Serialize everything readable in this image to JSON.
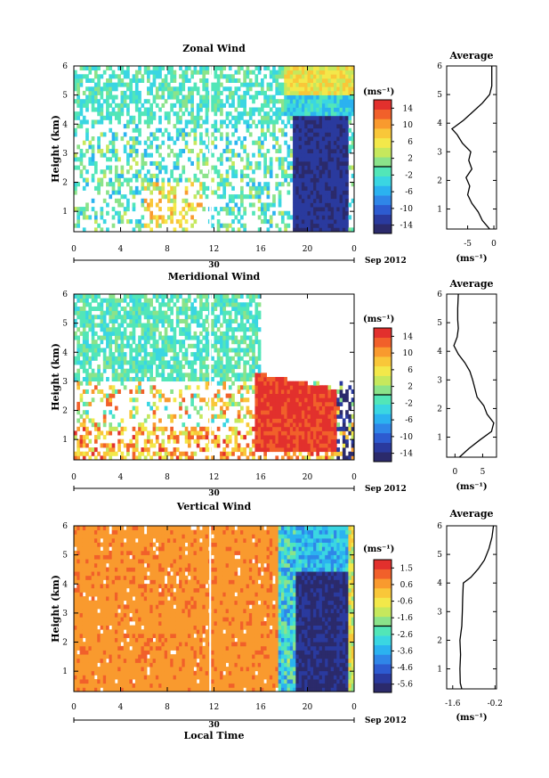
{
  "colors": {
    "scale": [
      "#2b2a6b",
      "#2a3a9e",
      "#2d5bd0",
      "#2f86e8",
      "#2bb2f0",
      "#3ad6e2",
      "#52e6b8",
      "#8be38a",
      "#c6e85d",
      "#f3e84a",
      "#f9c739",
      "#f99a2e",
      "#f1602a",
      "#e2302d"
    ]
  },
  "chart_data": [
    {
      "type": "heatmap",
      "title": "Zonal Wind",
      "ylabel": "Height (km)",
      "xlabel": "",
      "x_ticks": [
        "0",
        "4",
        "8",
        "12",
        "16",
        "20",
        "0"
      ],
      "y_ticks": [
        "1",
        "2",
        "3",
        "4",
        "5",
        "6"
      ],
      "date_label": "30",
      "month_label": "Sep 2012",
      "xlim": [
        0,
        24
      ],
      "ylim": [
        0.3,
        6
      ],
      "colorbar": {
        "unit": "(ms⁻¹)",
        "ticks": [
          "14",
          "10",
          "6",
          "2",
          "-2",
          "-6",
          "-10",
          "-14"
        ],
        "range": [
          -14,
          14
        ]
      },
      "average": {
        "title": "Average",
        "xlabel": "(ms⁻¹)",
        "x_ticks": [
          "-5",
          "0"
        ],
        "xlim": [
          -9,
          0.5
        ],
        "y_ticks": [
          "1",
          "2",
          "3",
          "4",
          "5",
          "6"
        ],
        "ylim": [
          0.3,
          6
        ],
        "profile": [
          [
            0.3,
            -0.8
          ],
          [
            0.6,
            -2.2
          ],
          [
            0.9,
            -3.0
          ],
          [
            1.2,
            -4.2
          ],
          [
            1.5,
            -5.0
          ],
          [
            1.8,
            -4.6
          ],
          [
            2.1,
            -5.3
          ],
          [
            2.4,
            -4.2
          ],
          [
            2.7,
            -4.8
          ],
          [
            3.0,
            -4.4
          ],
          [
            3.3,
            -6.0
          ],
          [
            3.6,
            -7.0
          ],
          [
            3.8,
            -8.0
          ],
          [
            4.1,
            -5.8
          ],
          [
            4.4,
            -4.0
          ],
          [
            4.7,
            -2.2
          ],
          [
            5.0,
            -0.8
          ],
          [
            5.3,
            -0.4
          ],
          [
            5.6,
            -0.4
          ],
          [
            6.0,
            -0.4
          ]
        ]
      }
    },
    {
      "type": "heatmap",
      "title": "Meridional Wind",
      "ylabel": "Height (km)",
      "xlabel": "",
      "x_ticks": [
        "0",
        "4",
        "8",
        "12",
        "16",
        "20",
        "0"
      ],
      "y_ticks": [
        "1",
        "2",
        "3",
        "4",
        "5",
        "6"
      ],
      "date_label": "30",
      "month_label": "Sep 2012",
      "xlim": [
        0,
        24
      ],
      "ylim": [
        0.3,
        6
      ],
      "colorbar": {
        "unit": "(ms⁻¹)",
        "ticks": [
          "14",
          "10",
          "6",
          "2",
          "-2",
          "-6",
          "-10",
          "-14"
        ],
        "range": [
          -14,
          14
        ]
      },
      "average": {
        "title": "Average",
        "xlabel": "(ms⁻¹)",
        "x_ticks": [
          "0",
          "5"
        ],
        "xlim": [
          -1.5,
          7.5
        ],
        "y_ticks": [
          "1",
          "2",
          "3",
          "4",
          "5",
          "6"
        ],
        "ylim": [
          0.3,
          6
        ],
        "profile": [
          [
            0.3,
            0.8
          ],
          [
            0.6,
            2.5
          ],
          [
            0.9,
            4.5
          ],
          [
            1.2,
            6.6
          ],
          [
            1.5,
            7.0
          ],
          [
            1.8,
            5.8
          ],
          [
            2.1,
            5.2
          ],
          [
            2.4,
            4.0
          ],
          [
            2.7,
            3.6
          ],
          [
            3.0,
            3.2
          ],
          [
            3.3,
            2.7
          ],
          [
            3.6,
            1.8
          ],
          [
            3.9,
            0.6
          ],
          [
            4.2,
            -0.2
          ],
          [
            4.5,
            0.4
          ],
          [
            4.8,
            0.6
          ],
          [
            5.1,
            0.5
          ],
          [
            5.5,
            0.5
          ],
          [
            6.0,
            0.6
          ]
        ]
      }
    },
    {
      "type": "heatmap",
      "title": "Vertical Wind",
      "ylabel": "Height (km)",
      "xlabel": "Local Time",
      "x_ticks": [
        "0",
        "4",
        "8",
        "12",
        "16",
        "20",
        "0"
      ],
      "y_ticks": [
        "1",
        "2",
        "3",
        "4",
        "5",
        "6"
      ],
      "date_label": "30",
      "month_label": "Sep 2012",
      "xlim": [
        0,
        24
      ],
      "ylim": [
        0.3,
        6
      ],
      "colorbar": {
        "unit": "(ms⁻¹)",
        "ticks": [
          "1.5",
          "0.6",
          "-0.6",
          "-1.6",
          "-2.6",
          "-3.6",
          "-4.6",
          "-5.6"
        ],
        "range": [
          -5.6,
          1.5
        ]
      },
      "average": {
        "title": "Average",
        "xlabel": "(ms⁻¹)",
        "x_ticks": [
          "-1.6",
          "-0.2"
        ],
        "xlim": [
          -1.8,
          -0.15
        ],
        "y_ticks": [
          "1",
          "2",
          "3",
          "4",
          "5",
          "6"
        ],
        "ylim": [
          0.3,
          6
        ],
        "profile": [
          [
            0.3,
            -1.3
          ],
          [
            0.5,
            -1.35
          ],
          [
            1.0,
            -1.36
          ],
          [
            1.5,
            -1.34
          ],
          [
            2.0,
            -1.36
          ],
          [
            2.5,
            -1.3
          ],
          [
            3.0,
            -1.28
          ],
          [
            3.5,
            -1.27
          ],
          [
            4.0,
            -1.25
          ],
          [
            4.2,
            -1.0
          ],
          [
            4.5,
            -0.75
          ],
          [
            4.8,
            -0.55
          ],
          [
            5.2,
            -0.4
          ],
          [
            5.6,
            -0.3
          ],
          [
            6.0,
            -0.25
          ]
        ]
      }
    }
  ]
}
